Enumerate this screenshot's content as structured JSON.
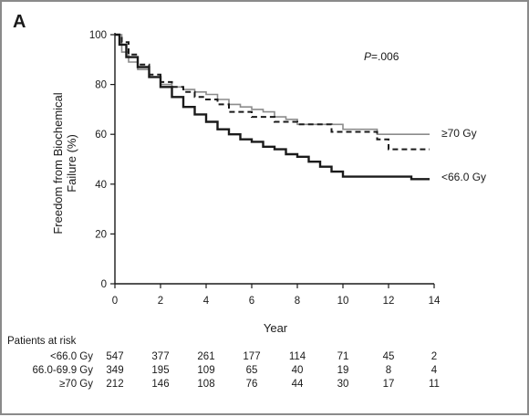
{
  "panel_label": "A",
  "p_value": {
    "prefix": "P",
    "value": "=.006"
  },
  "chart_data": {
    "type": "line",
    "title": "",
    "xlabel": "Year",
    "ylabel_line1": "Freedom from Biochemical",
    "ylabel_line2": "Failure (%)",
    "xlim": [
      0,
      14
    ],
    "ylim": [
      0,
      100
    ],
    "xticks": [
      "0",
      "2",
      "4",
      "6",
      "8",
      "10",
      "12",
      "14"
    ],
    "yticks": [
      "0",
      "20",
      "40",
      "60",
      "80",
      "100"
    ],
    "grid": false,
    "series": [
      {
        "name": "<66.0 Gy",
        "style": "solid-thick",
        "color": "#1a1a1a",
        "x": [
          0,
          0.2,
          0.5,
          1.0,
          1.5,
          2.0,
          2.5,
          3.0,
          3.5,
          4.0,
          4.5,
          5.0,
          5.5,
          6.0,
          6.5,
          7.0,
          7.5,
          8.0,
          8.5,
          9.0,
          9.5,
          10.0,
          10.5,
          11.0,
          12.0,
          13.0,
          13.8
        ],
        "y": [
          100,
          96,
          91,
          87,
          83,
          79,
          75,
          71,
          68,
          65,
          62,
          60,
          58,
          57,
          55,
          54,
          52,
          51,
          49,
          47,
          45,
          43,
          43,
          43,
          43,
          42,
          42
        ]
      },
      {
        "name": "66.0-69.9 Gy",
        "style": "dashed",
        "color": "#1a1a1a",
        "x": [
          0,
          0.3,
          0.6,
          1.0,
          1.5,
          2.0,
          2.5,
          3.0,
          3.5,
          4.0,
          4.5,
          5.0,
          6.0,
          7.0,
          8.0,
          9.0,
          9.5,
          10.0,
          11.0,
          11.5,
          12.0,
          13.0,
          13.8
        ],
        "y": [
          100,
          97,
          92,
          88,
          84,
          81,
          79,
          77,
          75,
          74,
          72,
          69,
          67,
          65,
          64,
          64,
          61,
          61,
          61,
          58,
          54,
          54,
          54
        ]
      },
      {
        "name": "≥70 Gy",
        "style": "solid-thin-gray",
        "color": "#8c8c8c",
        "x": [
          0,
          0.3,
          0.6,
          1.0,
          1.5,
          2.0,
          2.5,
          3.0,
          3.5,
          4.0,
          4.5,
          5.0,
          5.5,
          6.0,
          6.5,
          7.0,
          7.5,
          8.0,
          9.0,
          10.0,
          11.0,
          11.5,
          12.0,
          13.0,
          13.8
        ],
        "y": [
          100,
          93,
          89,
          86,
          83,
          80,
          79,
          78,
          77,
          76,
          74,
          72,
          71,
          70,
          69,
          67,
          66,
          64,
          64,
          62,
          62,
          60,
          60,
          60,
          60
        ]
      }
    ],
    "curve_labels": [
      {
        "series": "≥70 Gy",
        "text": "≥70 Gy"
      },
      {
        "series": "<66.0 Gy",
        "text": "<66.0 Gy"
      }
    ],
    "risk_table": {
      "title": "Patients at risk",
      "columns": [
        "0",
        "2",
        "4",
        "6",
        "8",
        "10",
        "12",
        "14"
      ],
      "rows": [
        {
          "label": "<66.0 Gy",
          "values": [
            "547",
            "377",
            "261",
            "177",
            "114",
            "71",
            "45",
            "2"
          ]
        },
        {
          "label": "66.0-69.9 Gy",
          "values": [
            "349",
            "195",
            "109",
            "65",
            "40",
            "19",
            "8",
            "4"
          ]
        },
        {
          "label": "≥70 Gy",
          "values": [
            "212",
            "146",
            "108",
            "76",
            "44",
            "30",
            "17",
            "11"
          ]
        }
      ]
    }
  }
}
